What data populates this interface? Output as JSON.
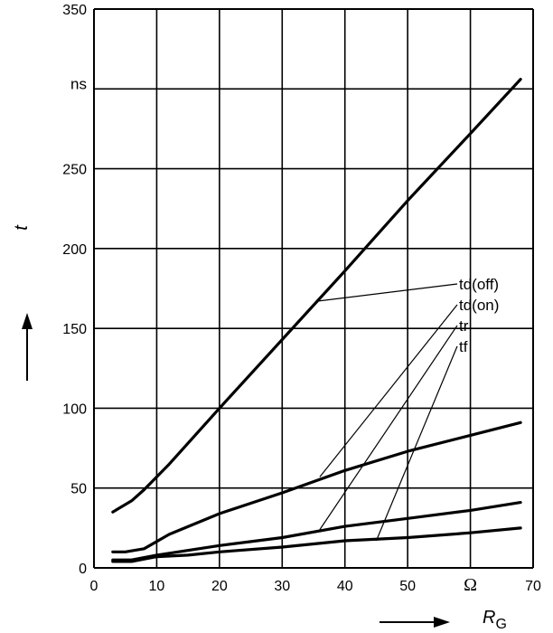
{
  "chart_data": {
    "type": "line",
    "xlabel": "R",
    "xlabel_subscript": "G",
    "x_unit": "Ω",
    "ylabel": "t",
    "y_unit": "ns",
    "xlim": [
      0,
      70
    ],
    "ylim": [
      0,
      350
    ],
    "x_ticks": [
      "0",
      "10",
      "20",
      "30",
      "40",
      "50",
      "Ω",
      "70"
    ],
    "y_ticks": [
      "0",
      "50",
      "100",
      "150",
      "200",
      "250",
      "ns",
      "350"
    ],
    "grid": true,
    "legend": "leader-line labels at right",
    "series": [
      {
        "name": "td(off)",
        "points": [
          [
            3,
            35
          ],
          [
            6,
            42
          ],
          [
            8,
            49
          ],
          [
            12,
            65
          ],
          [
            20,
            100
          ],
          [
            30,
            143
          ],
          [
            40,
            186
          ],
          [
            50,
            230
          ],
          [
            60,
            272
          ],
          [
            68,
            306
          ]
        ]
      },
      {
        "name": "td(on)",
        "points": [
          [
            3,
            10
          ],
          [
            5,
            10
          ],
          [
            8,
            12
          ],
          [
            12,
            21
          ],
          [
            20,
            34
          ],
          [
            30,
            47
          ],
          [
            40,
            61
          ],
          [
            50,
            73
          ],
          [
            60,
            83
          ],
          [
            68,
            91
          ]
        ]
      },
      {
        "name": "tr",
        "points": [
          [
            3,
            5
          ],
          [
            6,
            5
          ],
          [
            10,
            8
          ],
          [
            20,
            14
          ],
          [
            30,
            19
          ],
          [
            40,
            26
          ],
          [
            50,
            31
          ],
          [
            60,
            36
          ],
          [
            68,
            41
          ]
        ]
      },
      {
        "name": "tf",
        "points": [
          [
            3,
            4
          ],
          [
            6,
            4
          ],
          [
            10,
            7
          ],
          [
            15,
            8
          ],
          [
            20,
            10
          ],
          [
            30,
            13
          ],
          [
            40,
            17
          ],
          [
            50,
            19
          ],
          [
            60,
            22
          ],
          [
            68,
            25
          ]
        ]
      }
    ],
    "label_anchors": [
      {
        "name": "td(off)",
        "curve_point": [
          35.5,
          167
        ],
        "label_y": 175
      },
      {
        "name": "td(on)",
        "curve_point": [
          36,
          57
        ],
        "label_y": 162
      },
      {
        "name": "tr",
        "curve_point": [
          36,
          24
        ],
        "label_y": 149
      },
      {
        "name": "tf",
        "curve_point": [
          45,
          17
        ],
        "label_y": 136
      }
    ]
  }
}
